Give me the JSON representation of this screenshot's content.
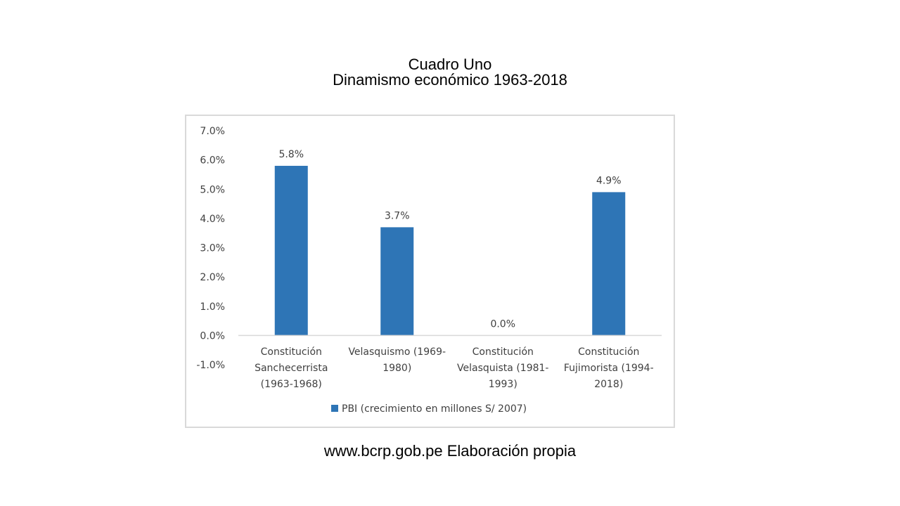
{
  "chart_data": {
    "type": "bar",
    "title": "Cuadro Uno",
    "subtitle": "Dinamismo económico 1963-2018",
    "categories": [
      [
        "Constitución",
        "Sanchecerrista",
        "(1963-1968)"
      ],
      [
        "Velasquismo (1969-",
        "1980)"
      ],
      [
        "Constitución",
        "Velasquista (1981-",
        "1993)"
      ],
      [
        "Constitución",
        "Fujimorista (1994-",
        "2018)"
      ]
    ],
    "series": [
      {
        "name": "PBI (crecimiento en millones S/ 2007)",
        "values": [
          5.8,
          3.7,
          0.0,
          4.9
        ],
        "color": "#2e75b6"
      }
    ],
    "data_labels": [
      "5.8%",
      "3.7%",
      "0.0%",
      "4.9%"
    ],
    "ylim": [
      -1.0,
      7.0
    ],
    "yticks": [
      "7.0%",
      "6.0%",
      "5.0%",
      "4.0%",
      "3.0%",
      "2.0%",
      "1.0%",
      "0.0%",
      "-1.0%"
    ],
    "grid": false,
    "legend_position": "bottom"
  },
  "source_note": "www.bcrp.gob.pe Elaboración propia"
}
